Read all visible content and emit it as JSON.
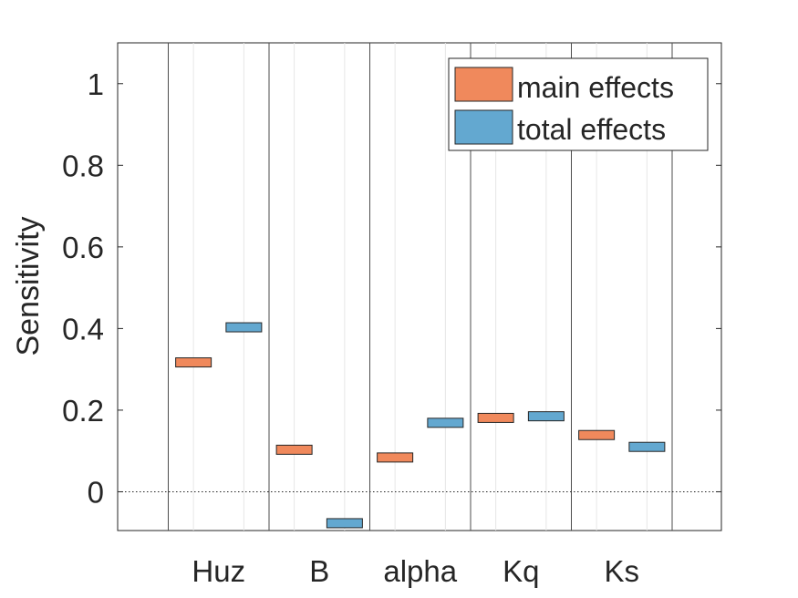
{
  "chart_data": {
    "type": "bar",
    "categories": [
      "Huz",
      "B",
      "alpha",
      "Kq",
      "Ks"
    ],
    "series": [
      {
        "name": "main effects",
        "color": "#F0895C",
        "values": [
          0.317,
          0.103,
          0.084,
          0.181,
          0.139
        ]
      },
      {
        "name": "total effects",
        "color": "#63A8D0",
        "values": [
          0.403,
          -0.077,
          0.169,
          0.185,
          0.11
        ]
      }
    ],
    "ylabel": "Sensitivity",
    "ylim": [
      -0.095,
      1.1
    ],
    "yticks": [
      0,
      0.2,
      0.4,
      0.6,
      0.8,
      1
    ],
    "ytick_labels": [
      "0",
      "0.2",
      "0.4",
      "0.6",
      "0.8",
      "1"
    ],
    "zero_line": "dotted",
    "legend_position": "top-right",
    "grid": false
  }
}
